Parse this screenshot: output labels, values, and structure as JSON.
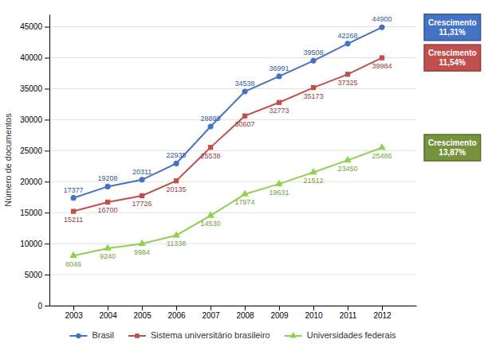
{
  "chart_data": {
    "type": "line",
    "x": [
      2003,
      2004,
      2005,
      2006,
      2007,
      2008,
      2009,
      2010,
      2011,
      2012
    ],
    "xlim": [
      2002.3,
      2013.0
    ],
    "xticks": [
      2003,
      2004,
      2005,
      2006,
      2007,
      2008,
      2009,
      2010,
      2011,
      2012
    ],
    "ylim": [
      0,
      47000
    ],
    "yticks": [
      0,
      5000,
      10000,
      15000,
      20000,
      25000,
      30000,
      35000,
      40000,
      45000
    ],
    "ylabel": "Número de documentos",
    "grid": "y",
    "legend": "bottom",
    "data_labels": true,
    "series": [
      {
        "name": "Brasil",
        "color": "#4472C4",
        "marker": "circle",
        "values": [
          17377,
          19208,
          20311,
          22935,
          28899,
          34538,
          36991,
          39508,
          42268,
          44900
        ]
      },
      {
        "name": "Sistema universitário brasileiro",
        "color": "#C0504D",
        "marker": "square",
        "values": [
          15211,
          16700,
          17726,
          20135,
          25538,
          30607,
          32773,
          35173,
          37325,
          39984
        ]
      },
      {
        "name": "Universidades federais",
        "color": "#92D050",
        "marker": "triangle",
        "values": [
          8046,
          9240,
          9984,
          11338,
          14530,
          17974,
          19631,
          21512,
          23450,
          25486
        ]
      }
    ],
    "annotations": [
      {
        "text": "Crescimento\n11,31%",
        "color": "#4472C4"
      },
      {
        "text": "Crescimento\n11,54%",
        "color": "#C0504D"
      },
      {
        "text": "Crescimento\n13,87%",
        "color": "#76923C"
      }
    ]
  }
}
